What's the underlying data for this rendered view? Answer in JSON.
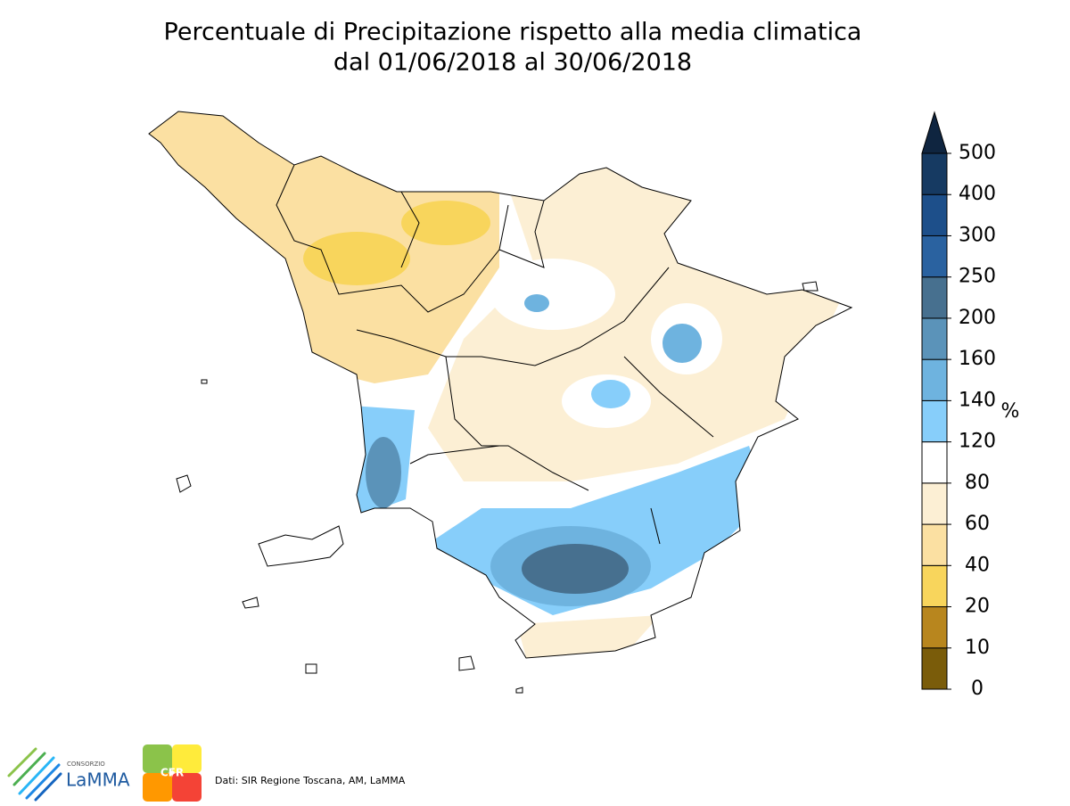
{
  "title": [
    "Percentuale di Precipitazione rispetto alla media climatica",
    "dal 01/06/2018 al 30/06/2018"
  ],
  "colorbar": {
    "ticks": [
      0,
      10,
      20,
      40,
      60,
      80,
      120,
      140,
      160,
      200,
      250,
      300,
      400,
      500
    ],
    "colors": [
      "#7a5c0a",
      "#b8861e",
      "#f8d55c",
      "#fbe0a2",
      "#fcefd4",
      "#ffffff",
      "#87cefa",
      "#6eb3df",
      "#5b93b9",
      "#47708f",
      "#2a62a0",
      "#1d4f8a",
      "#163a62"
    ],
    "extend_color": "#0f2540",
    "unit": "%"
  },
  "credits": "Dati: SIR Regione Toscana, AM, LaMMA",
  "logos": {
    "lamma": [
      "CONSORZIO",
      "LaMMA"
    ],
    "cfr": "CFR"
  }
}
